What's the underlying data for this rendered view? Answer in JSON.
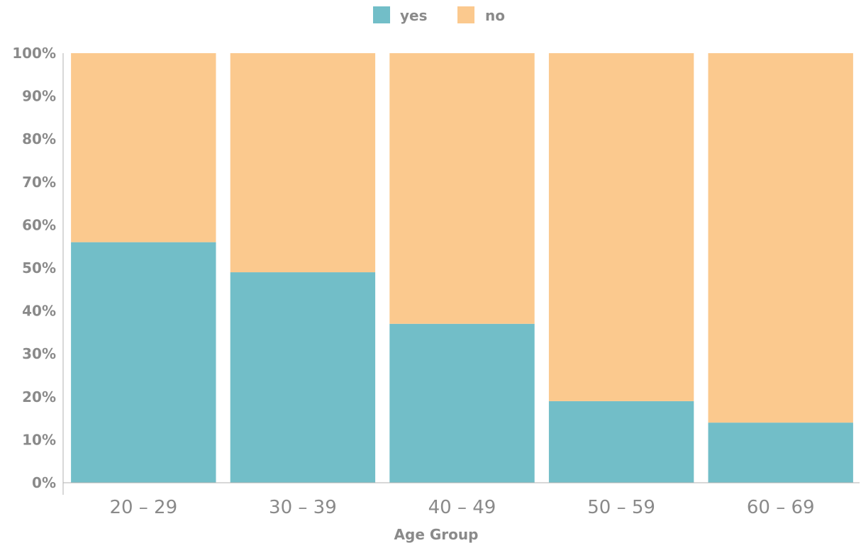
{
  "chart_data": {
    "type": "bar",
    "stacked": true,
    "normalized": true,
    "categories": [
      "20 – 29",
      "30 – 39",
      "40 – 49",
      "50 – 59",
      "60 – 69"
    ],
    "series": [
      {
        "name": "yes",
        "color": "#72bec8",
        "values": [
          56,
          49,
          37,
          19,
          14
        ]
      },
      {
        "name": "no",
        "color": "#fbc98e",
        "values": [
          44,
          51,
          63,
          81,
          86
        ]
      }
    ],
    "yticks": [
      "0%",
      "10%",
      "20%",
      "30%",
      "40%",
      "50%",
      "60%",
      "70%",
      "80%",
      "90%",
      "100%"
    ],
    "ylim": [
      0,
      100
    ],
    "xlabel": "Age Group",
    "ylabel": "",
    "title": "",
    "legend_position": "top-center",
    "grid": false
  }
}
